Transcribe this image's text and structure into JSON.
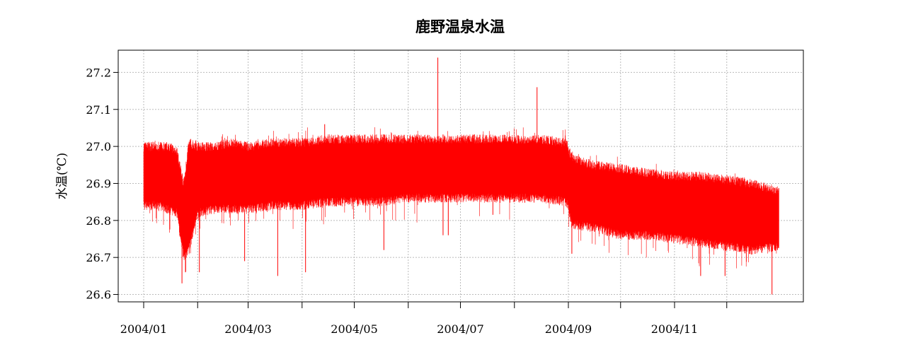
{
  "chart_data": {
    "type": "line",
    "title": "鹿野温泉水温",
    "xlabel": "",
    "ylabel": "水温(℃)",
    "x_tick_labels": [
      "2004/01",
      "2004/03",
      "2004/05",
      "2004/07",
      "2004/09",
      "2004/11"
    ],
    "x_range": [
      "2004-01-01",
      "2004-12-31"
    ],
    "y_ticks": [
      26.6,
      26.7,
      26.8,
      26.9,
      27.0,
      27.1,
      27.2
    ],
    "y_tick_labels": [
      "26.6",
      "26.7",
      "26.8",
      "26.9",
      "27.0",
      "27.1",
      "27.2"
    ],
    "ylim": [
      26.58,
      27.26
    ],
    "grid": true,
    "line_color": "#ff0000",
    "series": [
      {
        "name": "",
        "x_dates": [
          "2004-01-01",
          "2004-01-08",
          "2004-01-15",
          "2004-01-20",
          "2004-01-24",
          "2004-01-27",
          "2004-02-01",
          "2004-02-10",
          "2004-02-20",
          "2004-03-01",
          "2004-03-15",
          "2004-04-01",
          "2004-04-15",
          "2004-05-01",
          "2004-05-15",
          "2004-06-01",
          "2004-06-15",
          "2004-07-01",
          "2004-07-15",
          "2004-08-01",
          "2004-08-15",
          "2004-08-31",
          "2004-09-03",
          "2004-09-15",
          "2004-10-01",
          "2004-10-15",
          "2004-11-01",
          "2004-11-15",
          "2004-12-01",
          "2004-12-15",
          "2004-12-31"
        ],
        "y_max": [
          27.0,
          27.0,
          27.0,
          26.99,
          26.9,
          27.01,
          27.0,
          27.0,
          27.01,
          27.0,
          27.01,
          27.01,
          27.02,
          27.02,
          27.02,
          27.02,
          27.02,
          27.02,
          27.02,
          27.02,
          27.02,
          27.01,
          26.97,
          26.95,
          26.94,
          26.93,
          26.92,
          26.92,
          26.91,
          26.9,
          26.88
        ],
        "y_min": [
          26.84,
          26.84,
          26.83,
          26.82,
          26.7,
          26.72,
          26.82,
          26.83,
          26.83,
          26.83,
          26.84,
          26.84,
          26.85,
          26.85,
          26.85,
          26.86,
          26.86,
          26.86,
          26.86,
          26.86,
          26.86,
          26.85,
          26.79,
          26.78,
          26.76,
          26.76,
          26.75,
          26.74,
          26.73,
          26.72,
          26.73
        ]
      }
    ],
    "spikes": [
      {
        "date": "2004-01-23",
        "y": 26.63
      },
      {
        "date": "2004-01-25",
        "y": 26.66
      },
      {
        "date": "2004-01-28",
        "y": 27.02
      },
      {
        "date": "2004-02-02",
        "y": 26.66
      },
      {
        "date": "2004-02-28",
        "y": 26.69
      },
      {
        "date": "2004-03-18",
        "y": 26.65
      },
      {
        "date": "2004-04-03",
        "y": 26.66
      },
      {
        "date": "2004-04-14",
        "y": 27.06
      },
      {
        "date": "2004-05-18",
        "y": 26.72
      },
      {
        "date": "2004-06-18",
        "y": 27.24
      },
      {
        "date": "2004-06-21",
        "y": 26.76
      },
      {
        "date": "2004-06-24",
        "y": 26.76
      },
      {
        "date": "2004-08-14",
        "y": 27.16
      },
      {
        "date": "2004-09-03",
        "y": 26.71
      },
      {
        "date": "2004-11-16",
        "y": 26.65
      },
      {
        "date": "2004-11-30",
        "y": 26.65
      },
      {
        "date": "2004-12-27",
        "y": 26.6
      }
    ]
  }
}
